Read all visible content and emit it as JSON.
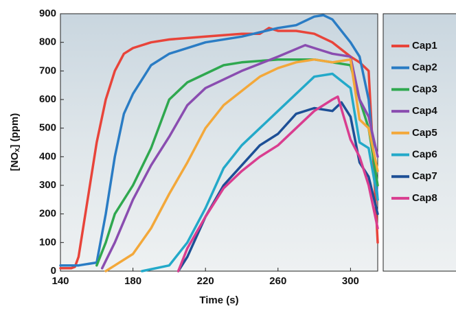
{
  "chart_data": {
    "type": "line",
    "xlabel": "Time (s)",
    "ylabel": {
      "pre": "[NO",
      "sub": "x",
      "post": "] (ppm)"
    },
    "xlim": [
      140,
      315
    ],
    "ylim": [
      0,
      900
    ],
    "xticks": [
      140,
      180,
      220,
      260,
      300
    ],
    "yticks": [
      0,
      100,
      200,
      300,
      400,
      500,
      600,
      700,
      800,
      900
    ],
    "legend": "right",
    "series": [
      {
        "name": "Cap1",
        "color": "#e8443a",
        "x": [
          140,
          146,
          148,
          150,
          155,
          160,
          165,
          170,
          175,
          180,
          190,
          200,
          220,
          240,
          250,
          255,
          260,
          270,
          280,
          290,
          300,
          305,
          310,
          315
        ],
        "values": [
          10,
          10,
          15,
          50,
          250,
          450,
          600,
          700,
          760,
          780,
          800,
          810,
          820,
          830,
          830,
          850,
          840,
          840,
          830,
          800,
          750,
          730,
          700,
          100
        ]
      },
      {
        "name": "Cap2",
        "color": "#2a7cc4",
        "x": [
          140,
          150,
          160,
          165,
          170,
          175,
          180,
          190,
          200,
          220,
          240,
          260,
          270,
          280,
          285,
          290,
          300,
          305,
          310,
          315
        ],
        "values": [
          20,
          20,
          30,
          200,
          400,
          550,
          620,
          720,
          760,
          800,
          820,
          850,
          860,
          890,
          895,
          880,
          800,
          750,
          600,
          250
        ]
      },
      {
        "name": "Cap3",
        "color": "#2fa84f",
        "x": [
          160,
          165,
          170,
          180,
          190,
          200,
          210,
          220,
          230,
          240,
          260,
          280,
          290,
          300,
          305,
          310,
          315
        ],
        "values": [
          20,
          100,
          200,
          300,
          430,
          600,
          660,
          690,
          720,
          730,
          740,
          740,
          730,
          720,
          600,
          500,
          300
        ]
      },
      {
        "name": "Cap4",
        "color": "#8a4db0",
        "x": [
          163,
          170,
          180,
          190,
          200,
          210,
          220,
          240,
          260,
          275,
          280,
          290,
          300,
          305,
          310,
          315
        ],
        "values": [
          10,
          100,
          250,
          370,
          470,
          580,
          640,
          700,
          750,
          790,
          780,
          760,
          750,
          600,
          540,
          400
        ]
      },
      {
        "name": "Cap5",
        "color": "#f3a83a",
        "x": [
          165,
          170,
          180,
          190,
          200,
          210,
          220,
          230,
          240,
          250,
          260,
          270,
          280,
          290,
          300,
          305,
          310,
          315
        ],
        "values": [
          0,
          20,
          60,
          150,
          270,
          380,
          500,
          580,
          630,
          680,
          710,
          730,
          740,
          730,
          740,
          530,
          500,
          350
        ]
      },
      {
        "name": "Cap6",
        "color": "#23a9c9",
        "x": [
          185,
          200,
          210,
          220,
          230,
          240,
          250,
          260,
          270,
          280,
          290,
          300,
          305,
          310,
          315
        ],
        "values": [
          0,
          20,
          100,
          220,
          360,
          440,
          500,
          560,
          620,
          680,
          690,
          640,
          450,
          430,
          250
        ]
      },
      {
        "name": "Cap7",
        "color": "#1d4f96",
        "x": [
          205,
          210,
          220,
          230,
          240,
          250,
          260,
          270,
          280,
          290,
          295,
          300,
          305,
          310,
          315
        ],
        "values": [
          0,
          50,
          190,
          300,
          370,
          440,
          480,
          550,
          570,
          560,
          590,
          540,
          380,
          330,
          200
        ]
      },
      {
        "name": "Cap8",
        "color": "#d93d8f",
        "x": [
          205,
          210,
          220,
          230,
          240,
          250,
          260,
          270,
          280,
          290,
          293,
          300,
          305,
          310,
          315
        ],
        "values": [
          0,
          80,
          190,
          290,
          350,
          400,
          440,
          500,
          560,
          600,
          610,
          460,
          400,
          300,
          150
        ]
      }
    ]
  }
}
